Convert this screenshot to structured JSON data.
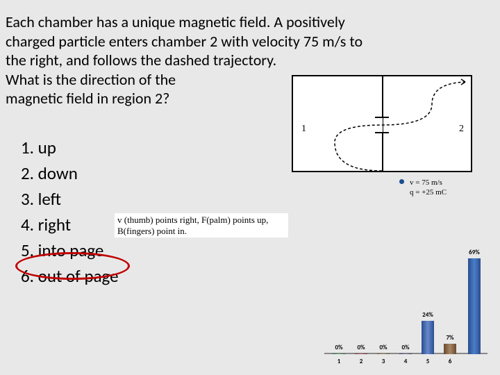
{
  "question": {
    "line1": "Each chamber has a unique magnetic field. A positively",
    "line2": "charged particle enters chamber 2 with velocity 75 m/s to",
    "line3": "the right, and follows the dashed trajectory.",
    "line4": "What is the direction of the",
    "line5": "magnetic field in region 2?"
  },
  "answers": {
    "a1": "1. up",
    "a2": "2. down",
    "a3": "3. left",
    "a4": "4. right",
    "a5": "5. into page",
    "a6": "6. out of page"
  },
  "hint": "v (thumb) points right, F(palm) points up, B(fingers) point in.",
  "diagram": {
    "label1": "1",
    "label2": "2",
    "velocity": "v = 75 m/s",
    "charge": "q = +25 mC"
  },
  "chart": {
    "bars": [
      {
        "x": "1",
        "pct": "0%",
        "h": 1,
        "color": "#2a6d3f"
      },
      {
        "x": "2",
        "pct": "0%",
        "h": 1,
        "color": "#7a2a2a"
      },
      {
        "x": "3",
        "pct": "0%",
        "h": 1,
        "color": "#6a5a2a"
      },
      {
        "x": "4",
        "pct": "0%",
        "h": 1,
        "color": "#4a3a6a"
      },
      {
        "x": "5",
        "pct": "24%",
        "h": 48,
        "color": "#2a4d8f"
      },
      {
        "x": "6",
        "pct": "7%",
        "h": 15,
        "color": "#6a4a2a"
      }
    ],
    "topBar": {
      "pct": "69%",
      "h": 138
    }
  }
}
